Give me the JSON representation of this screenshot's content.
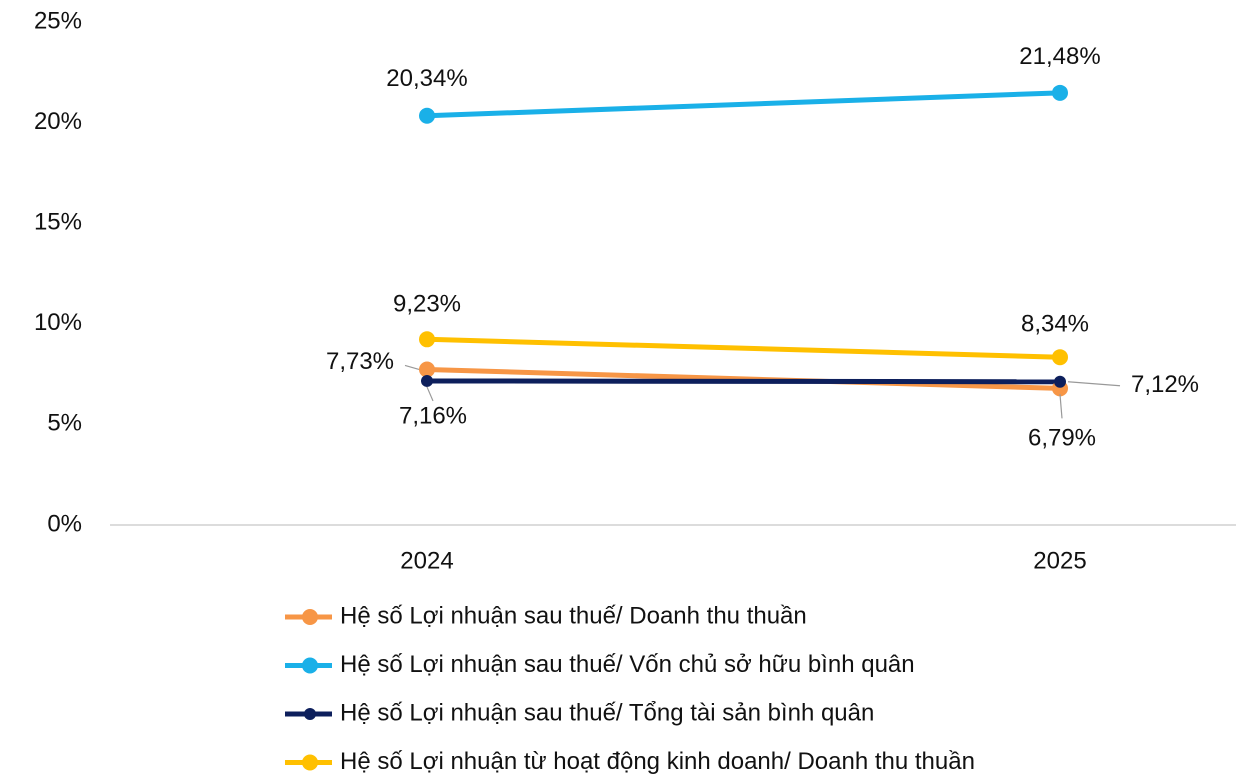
{
  "chart_data": {
    "type": "line",
    "categories": [
      "2024",
      "2025"
    ],
    "series": [
      {
        "name": "Hệ số Lợi nhuận sau thuế/ Doanh thu thuần",
        "color": "#f79646",
        "values": [
          7.73,
          6.79
        ],
        "value_labels": [
          "7,73%",
          "6,79%"
        ]
      },
      {
        "name": "Hệ số Lợi nhuận sau thuế/ Vốn chủ sở hữu bình quân",
        "color": "#1ab0e8",
        "values": [
          20.34,
          21.48
        ],
        "value_labels": [
          "20,34%",
          "21,48%"
        ]
      },
      {
        "name": "Hệ số Lợi nhuận sau thuế/ Tổng tài sản bình quân",
        "color": "#0d1f5c",
        "values": [
          7.16,
          7.12
        ],
        "value_labels": [
          "7,16%",
          "7,12%"
        ]
      },
      {
        "name": "Hệ số Lợi nhuận từ hoạt động kinh doanh/ Doanh thu thuần",
        "color": "#ffc000",
        "values": [
          9.23,
          8.34
        ],
        "value_labels": [
          "9,23%",
          "8,34%"
        ]
      }
    ],
    "ylim": [
      0,
      25
    ],
    "yticks": [
      {
        "value": 0,
        "label": "0%"
      },
      {
        "value": 5,
        "label": "5%"
      },
      {
        "value": 10,
        "label": "10%"
      },
      {
        "value": 15,
        "label": "15%"
      },
      {
        "value": 20,
        "label": "20%"
      },
      {
        "value": 25,
        "label": "25%"
      }
    ],
    "legend": "bottom"
  }
}
